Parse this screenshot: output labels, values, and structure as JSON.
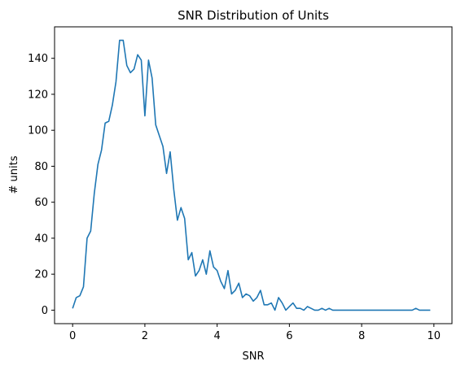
{
  "chart_data": {
    "type": "line",
    "title": "SNR Distribution of Units",
    "xlabel": "SNR",
    "ylabel": "# units",
    "xlim": [
      -0.5,
      10.5
    ],
    "ylim": [
      -7.5,
      157.5
    ],
    "xticks": [
      0,
      2,
      4,
      6,
      8,
      10
    ],
    "yticks": [
      0,
      20,
      40,
      60,
      80,
      100,
      120,
      140
    ],
    "grid": false,
    "color": "#1f77b4",
    "series": [
      {
        "x": [
          0.0,
          0.1,
          0.2,
          0.3,
          0.4,
          0.5,
          0.6,
          0.7,
          0.8,
          0.9,
          1.0,
          1.1,
          1.2,
          1.3,
          1.4,
          1.5,
          1.6,
          1.7,
          1.8,
          1.9,
          2.0,
          2.1,
          2.2,
          2.3,
          2.4,
          2.5,
          2.6,
          2.7,
          2.8,
          2.9,
          3.0,
          3.1,
          3.2,
          3.3,
          3.4,
          3.5,
          3.6,
          3.7,
          3.8,
          3.9,
          4.0,
          4.1,
          4.2,
          4.3,
          4.4,
          4.5,
          4.6,
          4.7,
          4.8,
          4.9,
          5.0,
          5.1,
          5.2,
          5.3,
          5.4,
          5.5,
          5.6,
          5.7,
          5.8,
          5.9,
          6.0,
          6.1,
          6.2,
          6.3,
          6.4,
          6.5,
          6.6,
          6.7,
          6.8,
          6.9,
          7.0,
          7.1,
          7.2,
          7.3,
          7.4,
          7.5,
          7.6,
          7.7,
          7.8,
          7.9,
          8.0,
          8.1,
          8.2,
          8.3,
          8.4,
          8.5,
          8.6,
          8.7,
          8.8,
          8.9,
          9.0,
          9.1,
          9.2,
          9.3,
          9.4,
          9.5,
          9.6,
          9.7,
          9.8,
          9.9
        ],
        "values": [
          1,
          7,
          8,
          13,
          40,
          44,
          65,
          81,
          89,
          104,
          105,
          114,
          127,
          150,
          150,
          136,
          132,
          134,
          142,
          139,
          108,
          139,
          129,
          103,
          97,
          91,
          76,
          88,
          67,
          50,
          57,
          51,
          28,
          32,
          19,
          22,
          28,
          20,
          33,
          24,
          22,
          16,
          12,
          22,
          9,
          11,
          15,
          7,
          9,
          8,
          5,
          7,
          11,
          3,
          3,
          4,
          0,
          7,
          4,
          0,
          2,
          4,
          1,
          1,
          0,
          2,
          1,
          0,
          0,
          1,
          0,
          1,
          0,
          0,
          0,
          0,
          0,
          0,
          0,
          0,
          0,
          0,
          0,
          0,
          0,
          0,
          0,
          0,
          0,
          0,
          0,
          0,
          0,
          0,
          0,
          1,
          0,
          0,
          0,
          0
        ]
      }
    ]
  }
}
